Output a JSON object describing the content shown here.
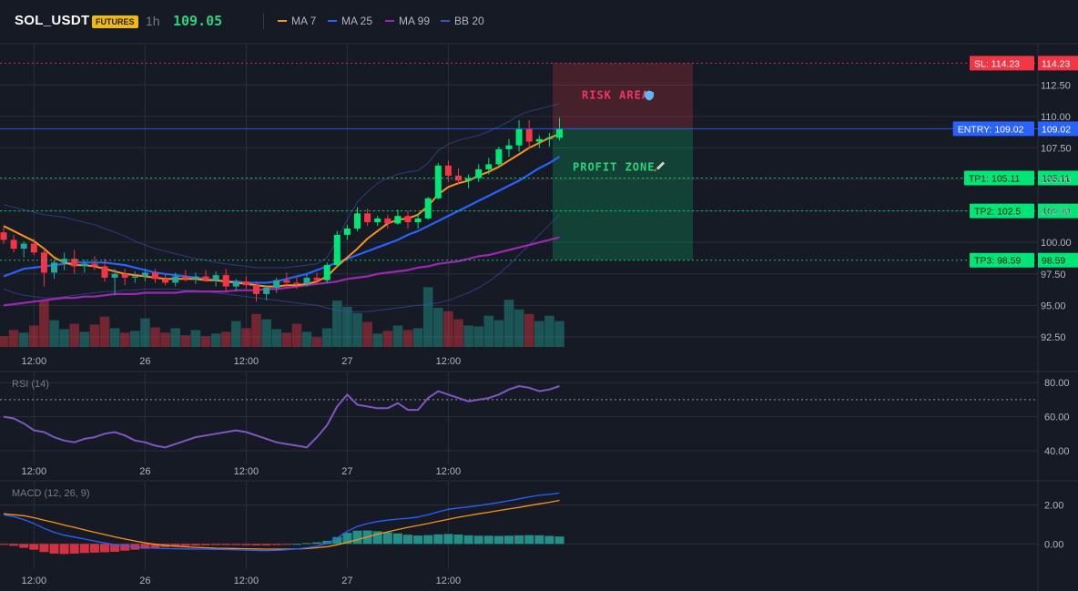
{
  "header": {
    "symbol": "SOL_USDT",
    "badge": "FUTURES",
    "timeframe": "1h",
    "last_price": "109.05",
    "legend": [
      {
        "label": "MA 7",
        "color": "#f7931a"
      },
      {
        "label": "MA 25",
        "color": "#2962ff"
      },
      {
        "label": "MA 99",
        "color": "#9c27b0"
      },
      {
        "label": "BB 20",
        "color": "#3f51b5"
      }
    ]
  },
  "colors": {
    "up": "#26a69a",
    "up_bright": "#00e676",
    "down": "#f23645",
    "grid": "#2a2e39",
    "background": "#161a25"
  },
  "chart_data": [
    {
      "id": "price",
      "type": "candlestick",
      "x_ticks": [
        "12:00",
        "26",
        "12:00",
        "27",
        "12:00"
      ],
      "x_tick_index": [
        3,
        14,
        24,
        34,
        44
      ],
      "y_ticks": [
        "112.50",
        "110.00",
        "107.50",
        "105.00",
        "102.50",
        "100.00",
        "97.50",
        "95.00",
        "92.50"
      ],
      "y_tick_values": [
        112.5,
        110,
        107.5,
        105,
        102.5,
        100,
        97.5,
        95,
        92.5
      ],
      "ylim": [
        91.7,
        115.7
      ],
      "ohlc": [
        [
          100.8,
          101.2,
          99.9,
          100.2
        ],
        [
          100.2,
          100.6,
          99.2,
          99.5
        ],
        [
          99.5,
          100.1,
          98.8,
          99.9
        ],
        [
          99.9,
          100.3,
          99.0,
          99.2
        ],
        [
          99.2,
          99.5,
          96.5,
          97.6
        ],
        [
          97.6,
          98.6,
          97.1,
          98.4
        ],
        [
          98.4,
          99.2,
          97.8,
          98.7
        ],
        [
          98.7,
          99.4,
          97.5,
          98.1
        ],
        [
          98.1,
          98.6,
          97.6,
          98.3
        ],
        [
          98.3,
          98.9,
          97.8,
          98.1
        ],
        [
          98.1,
          98.7,
          96.9,
          97.2
        ],
        [
          97.2,
          97.9,
          95.8,
          97.5
        ],
        [
          97.5,
          97.9,
          96.6,
          97.2
        ],
        [
          97.2,
          97.7,
          96.8,
          97.3
        ],
        [
          97.3,
          97.9,
          96.9,
          97.6
        ],
        [
          97.6,
          97.9,
          96.8,
          97.1
        ],
        [
          97.1,
          97.5,
          96.6,
          96.8
        ],
        [
          96.8,
          97.6,
          96.5,
          97.3
        ],
        [
          97.3,
          97.8,
          96.9,
          97.1
        ],
        [
          97.1,
          97.6,
          96.7,
          97.3
        ],
        [
          97.3,
          97.8,
          96.9,
          97.0
        ],
        [
          97.0,
          97.7,
          96.5,
          97.4
        ],
        [
          97.4,
          97.9,
          96.1,
          96.5
        ],
        [
          96.5,
          97.1,
          96.1,
          96.9
        ],
        [
          96.9,
          97.3,
          96.3,
          96.6
        ],
        [
          96.6,
          96.9,
          95.3,
          95.9
        ],
        [
          95.9,
          96.6,
          95.4,
          96.4
        ],
        [
          96.4,
          97.2,
          96.0,
          97.0
        ],
        [
          97.0,
          97.6,
          96.4,
          96.8
        ],
        [
          96.8,
          97.2,
          96.3,
          96.7
        ],
        [
          96.7,
          97.5,
          96.5,
          97.2
        ],
        [
          97.2,
          97.6,
          96.7,
          97.0
        ],
        [
          97.0,
          98.4,
          96.8,
          98.2
        ],
        [
          98.2,
          100.9,
          98.1,
          100.6
        ],
        [
          100.6,
          101.4,
          100.2,
          101.1
        ],
        [
          101.1,
          102.8,
          100.9,
          102.3
        ],
        [
          102.3,
          102.7,
          101.3,
          101.6
        ],
        [
          101.6,
          102.1,
          101.3,
          101.9
        ],
        [
          101.9,
          102.2,
          101.1,
          101.5
        ],
        [
          101.5,
          102.6,
          101.4,
          102.1
        ],
        [
          102.1,
          102.5,
          101.1,
          101.6
        ],
        [
          101.6,
          102.3,
          101.1,
          101.9
        ],
        [
          101.9,
          103.6,
          101.8,
          103.5
        ],
        [
          103.5,
          106.3,
          103.4,
          106.1
        ],
        [
          106.1,
          106.5,
          104.8,
          105.3
        ],
        [
          105.3,
          105.9,
          104.6,
          104.9
        ],
        [
          104.9,
          105.4,
          104.3,
          105.1
        ],
        [
          105.1,
          106.2,
          104.8,
          105.8
        ],
        [
          105.8,
          106.7,
          105.4,
          106.2
        ],
        [
          106.2,
          107.6,
          106.0,
          107.4
        ],
        [
          107.4,
          108.2,
          106.8,
          107.7
        ],
        [
          107.7,
          109.7,
          107.2,
          109.0
        ],
        [
          109.0,
          109.7,
          107.4,
          108.0
        ],
        [
          108.0,
          108.5,
          107.5,
          108.2
        ],
        [
          108.2,
          108.7,
          107.6,
          108.3
        ],
        [
          108.3,
          109.9,
          108.1,
          109.05
        ]
      ],
      "volume": [
        12,
        19,
        16,
        24,
        52,
        30,
        20,
        26,
        17,
        25,
        34,
        21,
        16,
        18,
        32,
        22,
        16,
        21,
        13,
        19,
        12,
        15,
        17,
        29,
        21,
        37,
        31,
        20,
        16,
        26,
        17,
        11,
        21,
        52,
        45,
        38,
        28,
        15,
        18,
        24,
        19,
        21,
        67,
        44,
        40,
        31,
        24,
        23,
        35,
        30,
        53,
        42,
        37,
        29,
        35,
        29
      ],
      "ma7": [
        101.3,
        100.9,
        100.5,
        100.1,
        99.5,
        98.8,
        98.4,
        98.2,
        98.2,
        98.1,
        97.9,
        97.7,
        97.5,
        97.4,
        97.3,
        97.2,
        97.1,
        97.1,
        97.1,
        97.1,
        97.0,
        97.0,
        96.9,
        96.8,
        96.7,
        96.6,
        96.5,
        96.5,
        96.6,
        96.6,
        96.7,
        96.9,
        97.3,
        98.1,
        98.8,
        99.5,
        100.3,
        100.9,
        101.5,
        101.8,
        101.9,
        102.2,
        102.9,
        103.8,
        104.4,
        104.7,
        104.9,
        105.3,
        105.6,
        106.0,
        106.5,
        107.0,
        107.5,
        107.9,
        108.3,
        108.6
      ],
      "ma25": [
        97.3,
        97.6,
        97.9,
        98.0,
        98.1,
        98.2,
        98.3,
        98.4,
        98.4,
        98.4,
        98.4,
        98.3,
        98.2,
        98.0,
        97.8,
        97.6,
        97.5,
        97.4,
        97.3,
        97.2,
        97.1,
        97.0,
        96.9,
        96.9,
        96.8,
        96.8,
        96.8,
        96.9,
        97.1,
        97.3,
        97.5,
        97.8,
        98.1,
        98.4,
        98.7,
        99.0,
        99.3,
        99.6,
        99.9,
        100.2,
        100.6,
        100.9,
        101.3,
        101.7,
        102.1,
        102.5,
        102.9,
        103.3,
        103.7,
        104.1,
        104.5,
        104.9,
        105.4,
        105.9,
        106.3,
        106.8
      ],
      "ma99": [
        95.0,
        95.1,
        95.2,
        95.3,
        95.4,
        95.5,
        95.6,
        95.6,
        95.7,
        95.7,
        95.8,
        95.9,
        95.9,
        95.9,
        96.0,
        96.0,
        96.0,
        96.0,
        96.1,
        96.1,
        96.1,
        96.1,
        96.1,
        96.2,
        96.2,
        96.2,
        96.3,
        96.3,
        96.4,
        96.5,
        96.6,
        96.7,
        96.8,
        96.9,
        97.1,
        97.2,
        97.3,
        97.5,
        97.6,
        97.7,
        97.8,
        98.0,
        98.1,
        98.3,
        98.4,
        98.5,
        98.7,
        98.9,
        99.0,
        99.2,
        99.4,
        99.6,
        99.8,
        100.0,
        100.2,
        100.4
      ],
      "bb_upper": [
        103.0,
        102.8,
        102.6,
        102.4,
        102.2,
        102.1,
        102.0,
        101.8,
        101.6,
        101.4,
        101.1,
        100.8,
        100.5,
        100.1,
        99.8,
        99.5,
        99.3,
        99.1,
        98.9,
        98.7,
        98.6,
        98.4,
        98.3,
        98.2,
        98.1,
        98.0,
        98.0,
        98.0,
        98.0,
        98.1,
        98.2,
        98.3,
        98.8,
        100.2,
        101.8,
        103.2,
        104.0,
        104.7,
        105.1,
        105.4,
        105.6,
        105.7,
        106.3,
        107.3,
        107.8,
        108.1,
        108.3,
        108.5,
        108.8,
        109.2,
        109.6,
        110.1,
        110.4,
        110.6,
        110.8,
        111.0
      ],
      "bb_lower": [
        96.3,
        96.0,
        95.8,
        95.7,
        95.6,
        95.6,
        95.7,
        95.8,
        95.9,
        96.0,
        96.1,
        96.1,
        96.2,
        96.2,
        96.3,
        96.3,
        96.3,
        96.3,
        96.2,
        96.2,
        96.1,
        96.0,
        95.9,
        95.8,
        95.7,
        95.6,
        95.5,
        95.4,
        95.3,
        95.2,
        95.1,
        95.0,
        94.8,
        94.6,
        94.5,
        94.5,
        94.5,
        94.6,
        94.7,
        94.8,
        94.9,
        95.0,
        95.1,
        95.2,
        95.4,
        95.7,
        96.0,
        96.4,
        96.9,
        97.5,
        98.2,
        99.0,
        99.8,
        100.6,
        101.4,
        102.2
      ],
      "levels": [
        {
          "label": "SL: 114.23",
          "value": 114.23,
          "value_label": "114.23",
          "color": "#f23645"
        },
        {
          "label": "ENTRY: 109.02",
          "value": 109.02,
          "value_label": "109.02",
          "color": "#2962ff"
        },
        {
          "label": "TP1: 105.11",
          "value": 105.11,
          "value_label": "105.11",
          "color": "#00e676"
        },
        {
          "label": "TP2: 102.5",
          "value": 102.5,
          "value_label": "102.50",
          "color": "#00e676"
        },
        {
          "label": "TP3: 98.59",
          "value": 98.59,
          "value_label": "98.59",
          "color": "#00e676"
        }
      ],
      "zones": [
        {
          "label": "RISK AREA",
          "from": 109.02,
          "to": 114.23,
          "color": "#f23645",
          "icon": "shield-icon"
        },
        {
          "label": "PROFIT ZONE",
          "from": 98.59,
          "to": 109.02,
          "color": "#00e676",
          "icon": "rocket-icon"
        }
      ]
    },
    {
      "id": "rsi",
      "type": "line",
      "title": "RSI (14)",
      "x_ticks": [
        "12:00",
        "26",
        "12:00",
        "27",
        "12:00"
      ],
      "y_ticks": [
        "80.00",
        "60.00",
        "40.00"
      ],
      "y_tick_values": [
        80,
        60,
        40
      ],
      "ylim": [
        32,
        86
      ],
      "reference_level": 70,
      "values": [
        60,
        59,
        56,
        52,
        51,
        48,
        46,
        45,
        47,
        48,
        50,
        51,
        49,
        46,
        45,
        43,
        42,
        44,
        46,
        48,
        49,
        50,
        51,
        52,
        51,
        49,
        47,
        45,
        44,
        43,
        42,
        48,
        55,
        66,
        73,
        67,
        66,
        65,
        65,
        68,
        64,
        64,
        71,
        75,
        73,
        71,
        69,
        70,
        71,
        73,
        76,
        78,
        77,
        75,
        76,
        78
      ]
    },
    {
      "id": "macd",
      "type": "line+histogram",
      "title": "MACD (12, 26, 9)",
      "x_ticks": [
        "12:00",
        "26",
        "12:00",
        "27",
        "12:00"
      ],
      "y_ticks": [
        "2.00",
        "0.00"
      ],
      "y_tick_values": [
        2,
        0
      ],
      "ylim": [
        -1.3,
        3.2
      ],
      "macd": [
        1.5,
        1.4,
        1.25,
        1.05,
        0.8,
        0.6,
        0.45,
        0.35,
        0.25,
        0.15,
        0.05,
        -0.05,
        -0.1,
        -0.15,
        -0.2,
        -0.22,
        -0.24,
        -0.25,
        -0.26,
        -0.27,
        -0.27,
        -0.28,
        -0.29,
        -0.3,
        -0.32,
        -0.34,
        -0.35,
        -0.33,
        -0.3,
        -0.26,
        -0.2,
        -0.12,
        0.02,
        0.3,
        0.65,
        0.9,
        1.05,
        1.15,
        1.22,
        1.28,
        1.32,
        1.38,
        1.5,
        1.65,
        1.78,
        1.85,
        1.9,
        1.97,
        2.05,
        2.13,
        2.22,
        2.32,
        2.42,
        2.5,
        2.55,
        2.62
      ],
      "signal": [
        1.55,
        1.5,
        1.45,
        1.35,
        1.22,
        1.1,
        0.97,
        0.85,
        0.72,
        0.6,
        0.48,
        0.36,
        0.25,
        0.15,
        0.05,
        -0.02,
        -0.08,
        -0.12,
        -0.15,
        -0.18,
        -0.2,
        -0.22,
        -0.23,
        -0.24,
        -0.25,
        -0.26,
        -0.27,
        -0.27,
        -0.27,
        -0.26,
        -0.24,
        -0.2,
        -0.14,
        -0.05,
        0.08,
        0.22,
        0.36,
        0.5,
        0.62,
        0.74,
        0.85,
        0.95,
        1.05,
        1.16,
        1.27,
        1.37,
        1.46,
        1.55,
        1.63,
        1.72,
        1.8,
        1.88,
        1.97,
        2.06,
        2.14,
        2.24
      ],
      "histogram": [
        -0.05,
        -0.1,
        -0.2,
        -0.3,
        -0.42,
        -0.5,
        -0.52,
        -0.5,
        -0.47,
        -0.45,
        -0.43,
        -0.41,
        -0.35,
        -0.3,
        -0.25,
        -0.2,
        -0.16,
        -0.13,
        -0.11,
        -0.09,
        -0.07,
        -0.06,
        -0.06,
        -0.06,
        -0.07,
        -0.08,
        -0.08,
        -0.06,
        -0.03,
        0.0,
        0.04,
        0.08,
        0.16,
        0.35,
        0.57,
        0.68,
        0.69,
        0.65,
        0.6,
        0.54,
        0.47,
        0.43,
        0.45,
        0.49,
        0.51,
        0.48,
        0.44,
        0.42,
        0.42,
        0.41,
        0.42,
        0.44,
        0.45,
        0.44,
        0.41,
        0.38
      ]
    }
  ]
}
